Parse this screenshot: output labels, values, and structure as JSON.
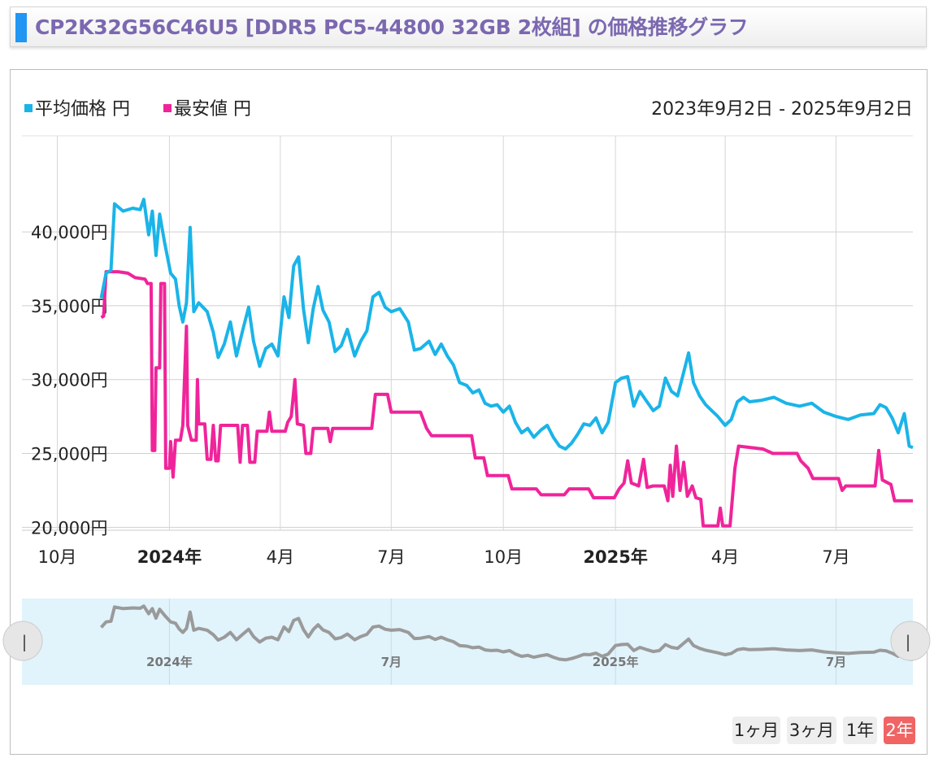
{
  "header": {
    "title": "CP2K32G56C46U5 [DDR5 PC5-44800 32GB 2枚組] の価格推移グラフ"
  },
  "legend": {
    "items": [
      {
        "label": "平均価格 円",
        "color": "#1ab4e8"
      },
      {
        "label": "最安値 円",
        "color": "#f0249a"
      }
    ],
    "date_range": "2023年9月2日 - 2025年9月2日"
  },
  "range_buttons": [
    {
      "label": "1ヶ月",
      "active": false
    },
    {
      "label": "3ヶ月",
      "active": false
    },
    {
      "label": "1年",
      "active": false
    },
    {
      "label": "2年",
      "active": true
    }
  ],
  "navigator": {
    "labels": [
      "2024年",
      "7月",
      "2025年",
      "7月"
    ],
    "left_handle": "|",
    "right_handle": "|"
  },
  "chart_data": {
    "type": "line",
    "x_type": "date",
    "x_range": [
      "2023-09-02",
      "2025-09-02"
    ],
    "ylim": [
      19800,
      46500
    ],
    "y_ticks": [
      {
        "value": 20000,
        "label": "20,000円"
      },
      {
        "value": 25000,
        "label": "25,000円"
      },
      {
        "value": 30000,
        "label": "30,000円"
      },
      {
        "value": 35000,
        "label": "35,000円"
      },
      {
        "value": 40000,
        "label": "40,000円"
      }
    ],
    "x_ticks": [
      {
        "date": "2023-10-01",
        "label": "10月",
        "bold": false
      },
      {
        "date": "2024-01-01",
        "label": "2024年",
        "bold": true
      },
      {
        "date": "2024-04-01",
        "label": "4月",
        "bold": false
      },
      {
        "date": "2024-07-01",
        "label": "7月",
        "bold": false
      },
      {
        "date": "2024-10-01",
        "label": "10月",
        "bold": false
      },
      {
        "date": "2025-01-01",
        "label": "2025年",
        "bold": true
      },
      {
        "date": "2025-04-01",
        "label": "4月",
        "bold": false
      },
      {
        "date": "2025-07-01",
        "label": "7月",
        "bold": false
      }
    ],
    "grid": true,
    "legend_position": "top-left",
    "series": [
      {
        "name": "平均価格 円",
        "color": "#1ab4e8",
        "points": [
          [
            "2023-11-06",
            35500
          ],
          [
            "2023-11-10",
            37200
          ],
          [
            "2023-11-14",
            37400
          ],
          [
            "2023-11-17",
            41900
          ],
          [
            "2023-11-24",
            41400
          ],
          [
            "2023-12-02",
            41600
          ],
          [
            "2023-12-08",
            41500
          ],
          [
            "2023-12-11",
            42200
          ],
          [
            "2023-12-15",
            39800
          ],
          [
            "2023-12-18",
            41400
          ],
          [
            "2023-12-21",
            38400
          ],
          [
            "2023-12-24",
            41200
          ],
          [
            "2023-12-28",
            39300
          ],
          [
            "2024-01-02",
            37200
          ],
          [
            "2024-01-06",
            36800
          ],
          [
            "2024-01-09",
            35000
          ],
          [
            "2024-01-12",
            33900
          ],
          [
            "2024-01-15",
            35200
          ],
          [
            "2024-01-18",
            40300
          ],
          [
            "2024-01-21",
            34600
          ],
          [
            "2024-01-25",
            35200
          ],
          [
            "2024-02-01",
            34600
          ],
          [
            "2024-02-06",
            33200
          ],
          [
            "2024-02-10",
            31500
          ],
          [
            "2024-02-15",
            32400
          ],
          [
            "2024-02-20",
            33900
          ],
          [
            "2024-02-25",
            31600
          ],
          [
            "2024-03-01",
            33300
          ],
          [
            "2024-03-06",
            34900
          ],
          [
            "2024-03-10",
            32600
          ],
          [
            "2024-03-15",
            30900
          ],
          [
            "2024-03-20",
            32100
          ],
          [
            "2024-03-25",
            32400
          ],
          [
            "2024-03-30",
            31600
          ],
          [
            "2024-04-04",
            35600
          ],
          [
            "2024-04-08",
            34200
          ],
          [
            "2024-04-12",
            37700
          ],
          [
            "2024-04-16",
            38300
          ],
          [
            "2024-04-20",
            34800
          ],
          [
            "2024-04-24",
            32500
          ],
          [
            "2024-04-28",
            34800
          ],
          [
            "2024-05-02",
            36300
          ],
          [
            "2024-05-06",
            34700
          ],
          [
            "2024-05-11",
            33900
          ],
          [
            "2024-05-16",
            31900
          ],
          [
            "2024-05-21",
            32300
          ],
          [
            "2024-05-26",
            33400
          ],
          [
            "2024-06-01",
            31600
          ],
          [
            "2024-06-06",
            32600
          ],
          [
            "2024-06-11",
            33300
          ],
          [
            "2024-06-16",
            35600
          ],
          [
            "2024-06-21",
            35900
          ],
          [
            "2024-06-26",
            34900
          ],
          [
            "2024-07-01",
            34600
          ],
          [
            "2024-07-08",
            34800
          ],
          [
            "2024-07-15",
            33900
          ],
          [
            "2024-07-20",
            32000
          ],
          [
            "2024-07-25",
            32100
          ],
          [
            "2024-08-01",
            32600
          ],
          [
            "2024-08-06",
            31700
          ],
          [
            "2024-08-11",
            32400
          ],
          [
            "2024-08-16",
            31600
          ],
          [
            "2024-08-21",
            31000
          ],
          [
            "2024-08-26",
            29800
          ],
          [
            "2024-09-01",
            29600
          ],
          [
            "2024-09-06",
            29100
          ],
          [
            "2024-09-11",
            29300
          ],
          [
            "2024-09-16",
            28400
          ],
          [
            "2024-09-21",
            28200
          ],
          [
            "2024-09-26",
            28300
          ],
          [
            "2024-10-01",
            27800
          ],
          [
            "2024-10-06",
            28200
          ],
          [
            "2024-10-11",
            27100
          ],
          [
            "2024-10-16",
            26400
          ],
          [
            "2024-10-21",
            26700
          ],
          [
            "2024-10-26",
            26100
          ],
          [
            "2024-11-01",
            26600
          ],
          [
            "2024-11-06",
            26900
          ],
          [
            "2024-11-11",
            26100
          ],
          [
            "2024-11-16",
            25500
          ],
          [
            "2024-11-21",
            25300
          ],
          [
            "2024-11-26",
            25700
          ],
          [
            "2024-12-01",
            26300
          ],
          [
            "2024-12-06",
            27000
          ],
          [
            "2024-12-11",
            26900
          ],
          [
            "2024-12-16",
            27400
          ],
          [
            "2024-12-21",
            26400
          ],
          [
            "2024-12-26",
            27100
          ],
          [
            "2025-01-01",
            29800
          ],
          [
            "2025-01-06",
            30100
          ],
          [
            "2025-01-11",
            30200
          ],
          [
            "2025-01-16",
            28200
          ],
          [
            "2025-01-21",
            29200
          ],
          [
            "2025-01-26",
            28600
          ],
          [
            "2025-02-01",
            27900
          ],
          [
            "2025-02-06",
            28200
          ],
          [
            "2025-02-11",
            30100
          ],
          [
            "2025-02-16",
            29200
          ],
          [
            "2025-02-21",
            28900
          ],
          [
            "2025-02-26",
            30500
          ],
          [
            "2025-03-02",
            31800
          ],
          [
            "2025-03-06",
            29800
          ],
          [
            "2025-03-11",
            28900
          ],
          [
            "2025-03-16",
            28300
          ],
          [
            "2025-03-21",
            27900
          ],
          [
            "2025-03-26",
            27500
          ],
          [
            "2025-04-01",
            26900
          ],
          [
            "2025-04-06",
            27300
          ],
          [
            "2025-04-11",
            28500
          ],
          [
            "2025-04-16",
            28800
          ],
          [
            "2025-04-21",
            28500
          ],
          [
            "2025-05-01",
            28600
          ],
          [
            "2025-05-11",
            28800
          ],
          [
            "2025-05-21",
            28400
          ],
          [
            "2025-06-01",
            28200
          ],
          [
            "2025-06-11",
            28400
          ],
          [
            "2025-06-21",
            27800
          ],
          [
            "2025-07-01",
            27500
          ],
          [
            "2025-07-11",
            27300
          ],
          [
            "2025-07-21",
            27600
          ],
          [
            "2025-08-01",
            27700
          ],
          [
            "2025-08-06",
            28300
          ],
          [
            "2025-08-11",
            28100
          ],
          [
            "2025-08-16",
            27400
          ],
          [
            "2025-08-21",
            26400
          ],
          [
            "2025-08-26",
            27700
          ],
          [
            "2025-08-30",
            25500
          ],
          [
            "2025-09-02",
            25400
          ]
        ]
      },
      {
        "name": "最安値 円",
        "color": "#f0249a",
        "points": [
          [
            "2023-11-06",
            34200
          ],
          [
            "2023-11-08",
            34300
          ],
          [
            "2023-11-10",
            37300
          ],
          [
            "2023-11-20",
            37300
          ],
          [
            "2023-11-28",
            37200
          ],
          [
            "2023-12-04",
            36900
          ],
          [
            "2023-12-12",
            36800
          ],
          [
            "2023-12-14",
            36500
          ],
          [
            "2023-12-17",
            36500
          ],
          [
            "2023-12-18",
            25200
          ],
          [
            "2023-12-20",
            25200
          ],
          [
            "2023-12-21",
            30800
          ],
          [
            "2023-12-24",
            30800
          ],
          [
            "2023-12-25",
            36500
          ],
          [
            "2023-12-28",
            36500
          ],
          [
            "2023-12-29",
            24000
          ],
          [
            "2024-01-01",
            24000
          ],
          [
            "2024-01-02",
            25800
          ],
          [
            "2024-01-04",
            23400
          ],
          [
            "2024-01-06",
            25900
          ],
          [
            "2024-01-10",
            25900
          ],
          [
            "2024-01-12",
            26900
          ],
          [
            "2024-01-15",
            33600
          ],
          [
            "2024-01-16",
            26900
          ],
          [
            "2024-01-19",
            25900
          ],
          [
            "2024-01-23",
            25900
          ],
          [
            "2024-01-24",
            30000
          ],
          [
            "2024-01-25",
            27000
          ],
          [
            "2024-01-30",
            27000
          ],
          [
            "2024-02-01",
            24600
          ],
          [
            "2024-02-04",
            24600
          ],
          [
            "2024-02-06",
            26900
          ],
          [
            "2024-02-08",
            24500
          ],
          [
            "2024-02-10",
            24500
          ],
          [
            "2024-02-12",
            26900
          ],
          [
            "2024-02-26",
            26900
          ],
          [
            "2024-02-28",
            24400
          ],
          [
            "2024-03-01",
            26900
          ],
          [
            "2024-03-05",
            26900
          ],
          [
            "2024-03-07",
            24400
          ],
          [
            "2024-03-11",
            24400
          ],
          [
            "2024-03-13",
            26500
          ],
          [
            "2024-03-21",
            26500
          ],
          [
            "2024-03-23",
            27800
          ],
          [
            "2024-03-25",
            26500
          ],
          [
            "2024-04-05",
            26500
          ],
          [
            "2024-04-07",
            27100
          ],
          [
            "2024-04-10",
            27500
          ],
          [
            "2024-04-13",
            30000
          ],
          [
            "2024-04-15",
            27000
          ],
          [
            "2024-04-20",
            26900
          ],
          [
            "2024-04-22",
            25000
          ],
          [
            "2024-04-26",
            25000
          ],
          [
            "2024-04-28",
            26700
          ],
          [
            "2024-05-10",
            26700
          ],
          [
            "2024-05-12",
            25800
          ],
          [
            "2024-05-14",
            26700
          ],
          [
            "2024-06-15",
            26700
          ],
          [
            "2024-06-18",
            29000
          ],
          [
            "2024-06-28",
            29000
          ],
          [
            "2024-07-01",
            27800
          ],
          [
            "2024-07-25",
            27800
          ],
          [
            "2024-07-30",
            26700
          ],
          [
            "2024-08-03",
            26200
          ],
          [
            "2024-09-05",
            26200
          ],
          [
            "2024-09-08",
            24700
          ],
          [
            "2024-09-15",
            24700
          ],
          [
            "2024-09-18",
            23500
          ],
          [
            "2024-10-05",
            23500
          ],
          [
            "2024-10-08",
            22600
          ],
          [
            "2024-10-28",
            22600
          ],
          [
            "2024-11-01",
            22200
          ],
          [
            "2024-11-20",
            22200
          ],
          [
            "2024-11-24",
            22600
          ],
          [
            "2024-12-10",
            22600
          ],
          [
            "2024-12-14",
            22000
          ],
          [
            "2024-12-31",
            22000
          ],
          [
            "2025-01-04",
            22600
          ],
          [
            "2025-01-08",
            23000
          ],
          [
            "2025-01-11",
            24500
          ],
          [
            "2025-01-14",
            23000
          ],
          [
            "2025-01-20",
            22800
          ],
          [
            "2025-01-24",
            24600
          ],
          [
            "2025-01-27",
            22700
          ],
          [
            "2025-02-01",
            22800
          ],
          [
            "2025-02-10",
            22800
          ],
          [
            "2025-02-13",
            21800
          ],
          [
            "2025-02-15",
            24200
          ],
          [
            "2025-02-17",
            22100
          ],
          [
            "2025-02-20",
            25500
          ],
          [
            "2025-02-23",
            22500
          ],
          [
            "2025-02-26",
            24400
          ],
          [
            "2025-03-01",
            22100
          ],
          [
            "2025-03-05",
            22800
          ],
          [
            "2025-03-08",
            22000
          ],
          [
            "2025-03-12",
            21900
          ],
          [
            "2025-03-14",
            20100
          ],
          [
            "2025-03-26",
            20100
          ],
          [
            "2025-03-28",
            21300
          ],
          [
            "2025-03-30",
            20100
          ],
          [
            "2025-04-05",
            20100
          ],
          [
            "2025-04-09",
            24000
          ],
          [
            "2025-04-12",
            25500
          ],
          [
            "2025-05-02",
            25300
          ],
          [
            "2025-05-10",
            25000
          ],
          [
            "2025-05-30",
            25000
          ],
          [
            "2025-06-02",
            24500
          ],
          [
            "2025-06-08",
            24000
          ],
          [
            "2025-06-12",
            23300
          ],
          [
            "2025-07-03",
            23300
          ],
          [
            "2025-07-06",
            22500
          ],
          [
            "2025-07-09",
            22800
          ],
          [
            "2025-08-02",
            22800
          ],
          [
            "2025-08-05",
            25200
          ],
          [
            "2025-08-08",
            23200
          ],
          [
            "2025-08-15",
            22900
          ],
          [
            "2025-08-18",
            21800
          ],
          [
            "2025-09-02",
            21800
          ]
        ]
      }
    ]
  }
}
